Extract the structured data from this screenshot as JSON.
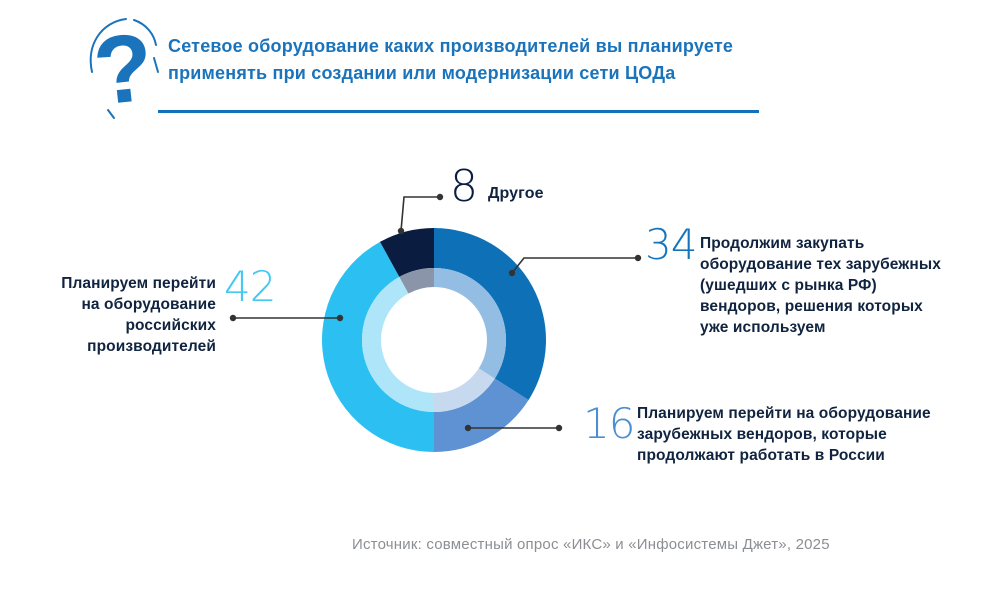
{
  "header": {
    "title": "Сетевое оборудование каких производителей вы планируете\nприменять при создании или модернизации сети ЦОДа",
    "title_color": "#1b74bb"
  },
  "chart_data": {
    "type": "pie",
    "subtype": "double-ring-donut",
    "title": "Сетевое оборудование каких производителей вы планируете применять при создании или модернизации сети ЦОДа",
    "unit": "percent",
    "start_angle_deg": 0,
    "clockwise": true,
    "legend_position": "callouts",
    "segments": [
      {
        "label": "Продолжим закупать оборудование тех зарубежных (ушедших с рынка РФ) вендоров, решения которых уже используем",
        "value": 34,
        "color": "#0e71b8",
        "inner_color": "#93bde2"
      },
      {
        "label": "Планируем перейти на оборудование зарубежных вендоров, которые продолжают работать в России",
        "value": 16,
        "color": "#5e92d2",
        "inner_color": "#c7d9ee"
      },
      {
        "label": "Планируем перейти на оборудование российских производителей",
        "value": 42,
        "color": "#2bc0f1",
        "inner_color": "#aee5f9"
      },
      {
        "label": "Другое",
        "value": 8,
        "color": "#0a1c3f",
        "inner_color": "#8b95a9"
      }
    ]
  },
  "callouts": {
    "other": {
      "number": "8",
      "number_color": "#0a1c3f",
      "text": "Другое"
    },
    "continue_foreign": {
      "number": "34",
      "number_color": "#1674bd",
      "text": "Продолжим закупать\nоборудование тех зарубежных\n(ушедших с рынка РФ)\nвендоров, решения которых\nуже используем"
    },
    "russian": {
      "number": "42",
      "number_color": "#45c8f1",
      "text": "Планируем перейти\nна оборудование\nроссийских\nпроизводителей"
    },
    "foreign_in_russia": {
      "number": "16",
      "number_color": "#4a8fd3",
      "text": "Планируем перейти на оборудование\nзарубежных вендоров, которые\nпродолжают работать в России"
    }
  },
  "footer": {
    "source": "Источник: совместный опрос «ИКС» и «Инфосистемы Джет», 2025"
  }
}
